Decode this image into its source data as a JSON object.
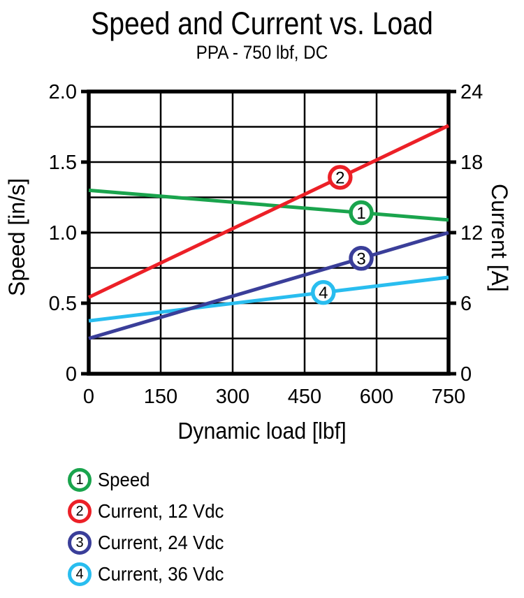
{
  "chart_data": {
    "type": "line",
    "title": "Speed and Current vs. Load",
    "subtitle": "PPA - 750 lbf, DC",
    "xlabel": "Dynamic load [lbf]",
    "ylabel_left": "Speed [in/s]",
    "ylabel_right": "Current [A]",
    "xlim": [
      0,
      750
    ],
    "ylim_left": [
      0,
      2.0
    ],
    "ylim_right": [
      0,
      24
    ],
    "grid": {
      "x_step_lbf": 150,
      "y_step_left": 0.25,
      "y_step_right": 3,
      "grid_on": true
    },
    "x_ticks": [
      {
        "value": 0,
        "label": "0"
      },
      {
        "value": 150,
        "label": "150"
      },
      {
        "value": 300,
        "label": "300"
      },
      {
        "value": 450,
        "label": "450"
      },
      {
        "value": 600,
        "label": "600"
      },
      {
        "value": 750,
        "label": "750"
      }
    ],
    "y_ticks_left": [
      {
        "value": 2.0,
        "label": "2.0"
      },
      {
        "value": 1.5,
        "label": "1.5"
      },
      {
        "value": 1.0,
        "label": "1.0"
      },
      {
        "value": 0.5,
        "label": "0.5"
      },
      {
        "value": 0,
        "label": "0"
      }
    ],
    "y_ticks_right": [
      {
        "value": 24,
        "label": "24"
      },
      {
        "value": 18,
        "label": "18"
      },
      {
        "value": 12,
        "label": "12"
      },
      {
        "value": 6,
        "label": "6"
      },
      {
        "value": 0,
        "label": "0"
      }
    ],
    "legend_position": "bottom-left",
    "series": [
      {
        "number": "1",
        "label": "Speed",
        "axis": "left",
        "color": "#1AA44D",
        "x": [
          0,
          750
        ],
        "y": [
          1.3,
          1.09
        ],
        "marker_x": 568
      },
      {
        "number": "2",
        "label": "Current, 12 Vdc",
        "axis": "right",
        "color": "#EC2027",
        "x": [
          0,
          750
        ],
        "y": [
          6.5,
          21.1
        ],
        "marker_x": 524
      },
      {
        "number": "3",
        "label": "Current, 24 Vdc",
        "axis": "right",
        "color": "#3A3E99",
        "x": [
          0,
          750
        ],
        "y": [
          3.0,
          12.0
        ],
        "marker_x": 568
      },
      {
        "number": "4",
        "label": "Current, 36 Vdc",
        "axis": "right",
        "color": "#29BDEF",
        "x": [
          0,
          750
        ],
        "y": [
          4.5,
          8.2
        ],
        "marker_x": 489
      }
    ]
  }
}
